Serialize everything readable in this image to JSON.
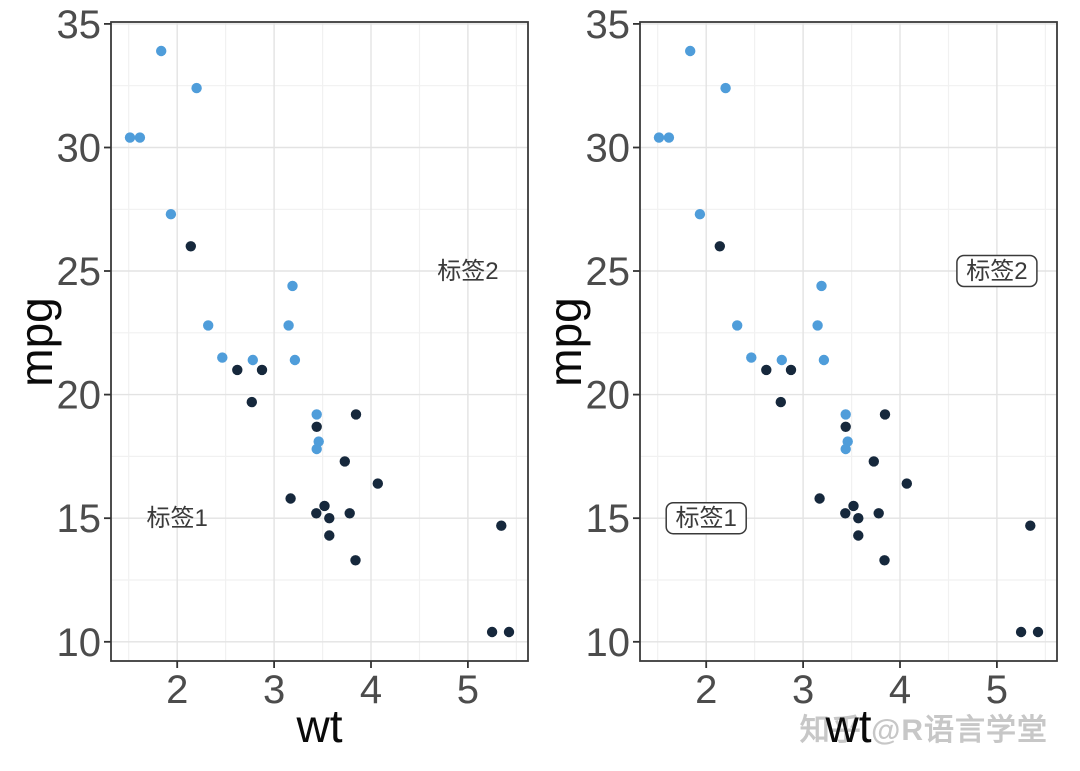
{
  "figure": {
    "background": "#ffffff",
    "watermark": {
      "text": "知乎 @R语言学堂",
      "color": "#c7c7c7"
    }
  },
  "chart_data": [
    {
      "type": "scatter",
      "title": "",
      "xlabel": "wt",
      "ylabel": "mpg",
      "xlim": [
        1.317,
        5.62
      ],
      "ylim": [
        9.225,
        35.075
      ],
      "x_ticks": [
        2,
        3,
        4,
        5
      ],
      "y_ticks": [
        10,
        15,
        20,
        25,
        30,
        35
      ],
      "x_minor_ticks": [
        1.5,
        2.5,
        3.5,
        4.5,
        5.5
      ],
      "y_minor_ticks": [
        12.5,
        17.5,
        22.5,
        27.5,
        32.5
      ],
      "grid": "major+minor",
      "legend": "none",
      "annotations": [
        {
          "text": "标签1",
          "x": 2,
          "y": 15,
          "style": "text"
        },
        {
          "text": "标签2",
          "x": 5,
          "y": 25,
          "style": "text"
        }
      ],
      "series": [
        {
          "name": "dark-navy",
          "color": "#16283c",
          "points": [
            [
              2.62,
              21.0
            ],
            [
              2.875,
              21.0
            ],
            [
              3.44,
              18.7
            ],
            [
              3.57,
              14.3
            ],
            [
              3.73,
              17.3
            ],
            [
              3.78,
              15.2
            ],
            [
              4.07,
              16.4
            ],
            [
              5.25,
              10.4
            ],
            [
              5.345,
              14.7
            ],
            [
              5.424,
              10.4
            ],
            [
              3.52,
              15.5
            ],
            [
              3.435,
              15.2
            ],
            [
              3.84,
              13.3
            ],
            [
              3.845,
              19.2
            ],
            [
              2.14,
              26.0
            ],
            [
              3.17,
              15.8
            ],
            [
              2.77,
              19.7
            ],
            [
              3.57,
              15.0
            ]
          ]
        },
        {
          "name": "light-blue",
          "color": "#4f9dda",
          "points": [
            [
              2.32,
              22.8
            ],
            [
              3.215,
              21.4
            ],
            [
              3.46,
              18.1
            ],
            [
              3.19,
              24.4
            ],
            [
              3.15,
              22.8
            ],
            [
              3.44,
              19.2
            ],
            [
              3.44,
              17.8
            ],
            [
              2.2,
              32.4
            ],
            [
              1.615,
              30.4
            ],
            [
              1.835,
              33.9
            ],
            [
              2.465,
              21.5
            ],
            [
              1.935,
              27.3
            ],
            [
              1.513,
              30.4
            ],
            [
              2.78,
              21.4
            ]
          ]
        }
      ]
    },
    {
      "type": "scatter",
      "title": "",
      "xlabel": "wt",
      "ylabel": "mpg",
      "xlim": [
        1.317,
        5.62
      ],
      "ylim": [
        9.225,
        35.075
      ],
      "x_ticks": [
        2,
        3,
        4,
        5
      ],
      "y_ticks": [
        10,
        15,
        20,
        25,
        30,
        35
      ],
      "x_minor_ticks": [
        1.5,
        2.5,
        3.5,
        4.5,
        5.5
      ],
      "y_minor_ticks": [
        12.5,
        17.5,
        22.5,
        27.5,
        32.5
      ],
      "grid": "major+minor",
      "legend": "none",
      "annotations": [
        {
          "text": "标签1",
          "x": 2,
          "y": 15,
          "style": "label"
        },
        {
          "text": "标签2",
          "x": 5,
          "y": 25,
          "style": "label"
        }
      ],
      "series": [
        {
          "name": "dark-navy",
          "color": "#16283c",
          "points": [
            [
              2.62,
              21.0
            ],
            [
              2.875,
              21.0
            ],
            [
              3.44,
              18.7
            ],
            [
              3.57,
              14.3
            ],
            [
              3.73,
              17.3
            ],
            [
              3.78,
              15.2
            ],
            [
              4.07,
              16.4
            ],
            [
              5.25,
              10.4
            ],
            [
              5.345,
              14.7
            ],
            [
              5.424,
              10.4
            ],
            [
              3.52,
              15.5
            ],
            [
              3.435,
              15.2
            ],
            [
              3.84,
              13.3
            ],
            [
              3.845,
              19.2
            ],
            [
              2.14,
              26.0
            ],
            [
              3.17,
              15.8
            ],
            [
              2.77,
              19.7
            ],
            [
              3.57,
              15.0
            ]
          ]
        },
        {
          "name": "light-blue",
          "color": "#4f9dda",
          "points": [
            [
              2.32,
              22.8
            ],
            [
              3.215,
              21.4
            ],
            [
              3.46,
              18.1
            ],
            [
              3.19,
              24.4
            ],
            [
              3.15,
              22.8
            ],
            [
              3.44,
              19.2
            ],
            [
              3.44,
              17.8
            ],
            [
              2.2,
              32.4
            ],
            [
              1.615,
              30.4
            ],
            [
              1.835,
              33.9
            ],
            [
              2.465,
              21.5
            ],
            [
              1.935,
              27.3
            ],
            [
              1.513,
              30.4
            ],
            [
              2.78,
              21.4
            ]
          ]
        }
      ]
    }
  ]
}
